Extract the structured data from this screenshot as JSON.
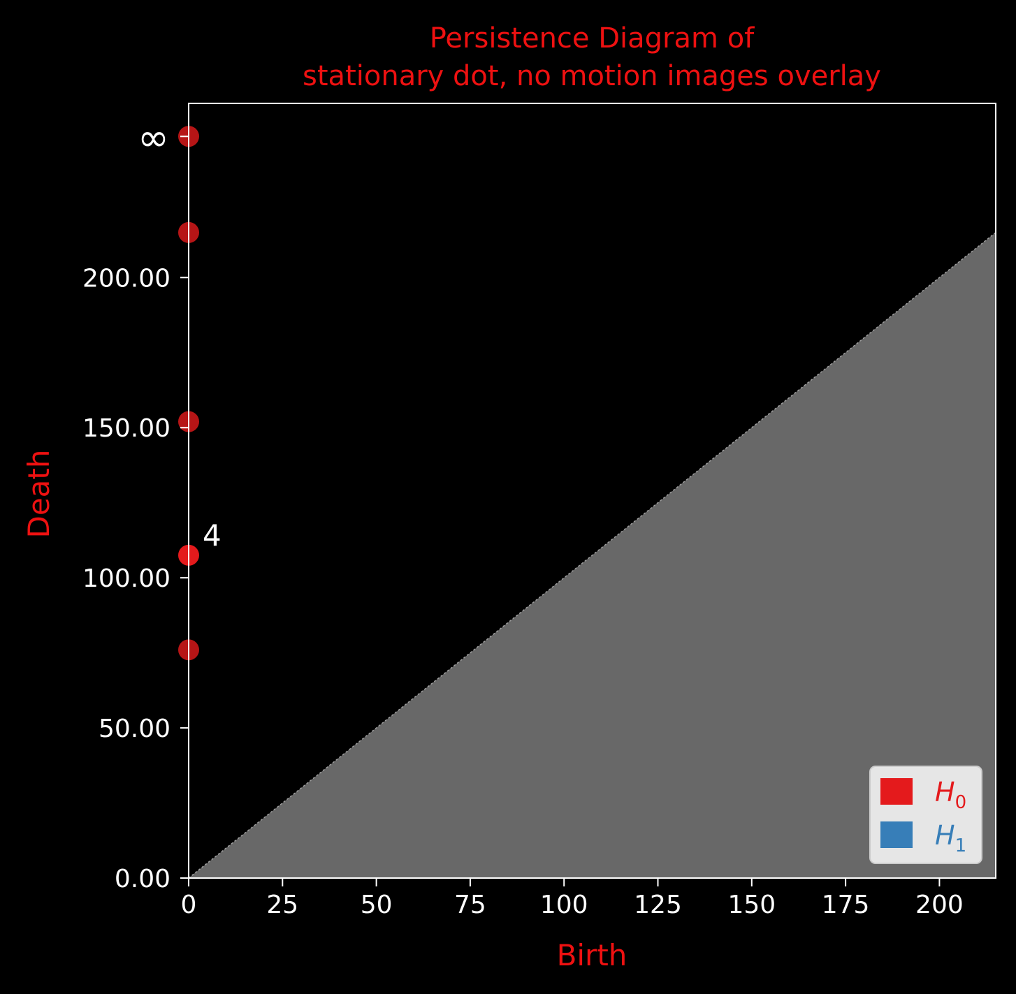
{
  "chart_data": {
    "type": "scatter",
    "title": [
      "Persistence Diagram of",
      "stationary dot, no motion images overlay"
    ],
    "xlabel": "Birth",
    "ylabel": "Death",
    "xlim": [
      0,
      215
    ],
    "ylim": [
      0,
      258
    ],
    "x_ticks": [
      0,
      25,
      50,
      75,
      100,
      125,
      150,
      175,
      200
    ],
    "x_tick_labels": [
      "0",
      "25",
      "50",
      "75",
      "100",
      "125",
      "150",
      "175",
      "200"
    ],
    "y_ticks": [
      0,
      50,
      100,
      150,
      200
    ],
    "y_tick_labels": [
      "0.00",
      "50.00",
      "100.00",
      "150.00",
      "200.00"
    ],
    "infinity_label": "∞",
    "infinity_value": 247,
    "diagonal": true,
    "diagonal_fill_color": "#686868",
    "series": [
      {
        "name": "H0",
        "color": "#e41a1c",
        "points": [
          {
            "birth": 0,
            "death": 247,
            "infinite": true
          },
          {
            "birth": 0,
            "death": 215
          },
          {
            "birth": 0,
            "death": 152
          },
          {
            "birth": 0,
            "death": 107.5,
            "highlighted": true
          },
          {
            "birth": 0,
            "death": 76
          }
        ]
      },
      {
        "name": "H1",
        "color": "#377eb8",
        "points": []
      }
    ],
    "annotations": [
      {
        "text": "4",
        "birth": 0,
        "death": 107.5
      }
    ],
    "legend": {
      "position": "bottom-right",
      "entries": [
        {
          "base": "H",
          "sub": "0",
          "color": "#e41a1c"
        },
        {
          "base": "H",
          "sub": "1",
          "color": "#377eb8"
        }
      ]
    },
    "grid": false
  }
}
